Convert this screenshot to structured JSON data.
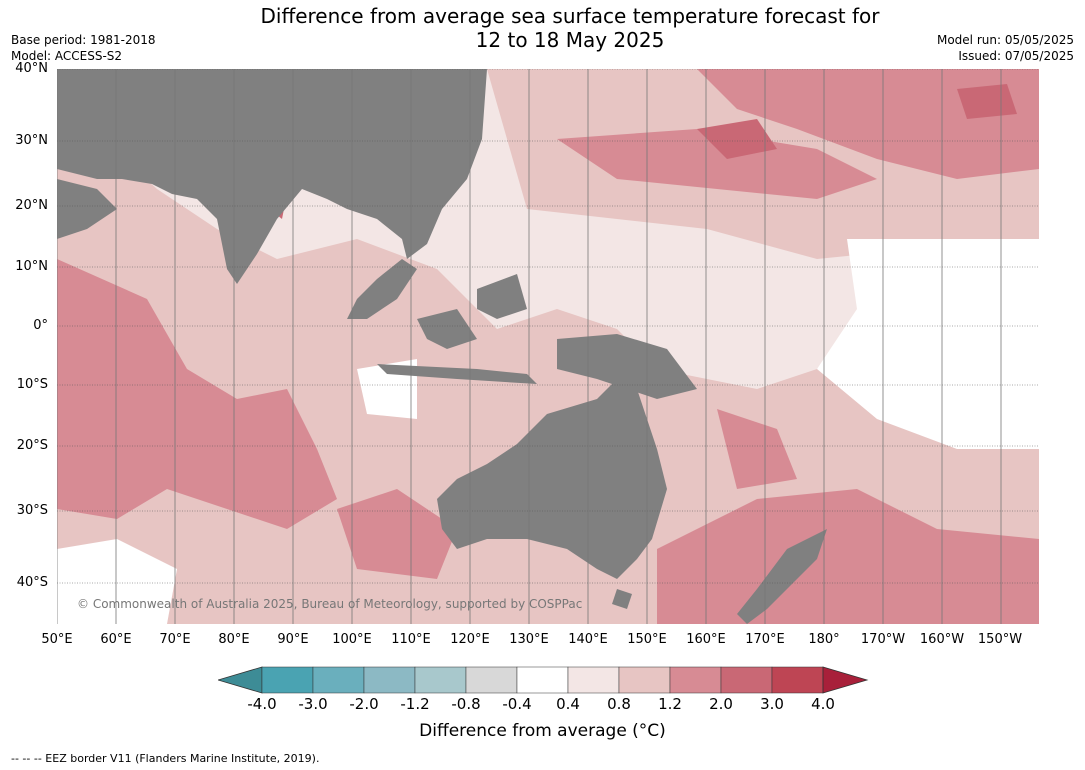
{
  "title_line1": "Difference from average sea surface temperature forecast for",
  "title_line2": "12 to 18 May 2025",
  "meta_left": [
    "Base period: 1981-2018",
    "Model: ACCESS-S2"
  ],
  "meta_right": [
    "Model run: 05/05/2025",
    "Issued: 07/05/2025"
  ],
  "lat_labels": [
    "40°N",
    "30°N",
    "20°N",
    "10°N",
    "0°",
    "10°S",
    "20°S",
    "30°S",
    "40°S"
  ],
  "lon_labels": [
    "50°E",
    "60°E",
    "70°E",
    "80°E",
    "90°E",
    "100°E",
    "110°E",
    "120°E",
    "130°E",
    "140°E",
    "150°E",
    "160°E",
    "170°E",
    "180°",
    "170°W",
    "160°W",
    "150°W"
  ],
  "copyright": "© Commonwealth of Australia 2025, Bureau of Meteorology, supported by COSPPac",
  "colorbar": {
    "ticks": [
      "-4.0",
      "-3.0",
      "-2.0",
      "-1.2",
      "-0.8",
      "-0.4",
      "0.4",
      "0.8",
      "1.2",
      "2.0",
      "3.0",
      "4.0"
    ],
    "label": "Difference from average (°C)",
    "colors": [
      "#3d8c96",
      "#4aa3b2",
      "#6aafbd",
      "#8cb9c4",
      "#a8c8cc",
      "#d8d8d8",
      "#ffffff",
      "#f3e6e5",
      "#e7c5c3",
      "#d78b94",
      "#c96875",
      "#be4554",
      "#a8203a"
    ]
  },
  "land_color": "#808080",
  "footnote": "--  --  -- EEZ border V11 (Flanders Marine Institute, 2019)."
}
